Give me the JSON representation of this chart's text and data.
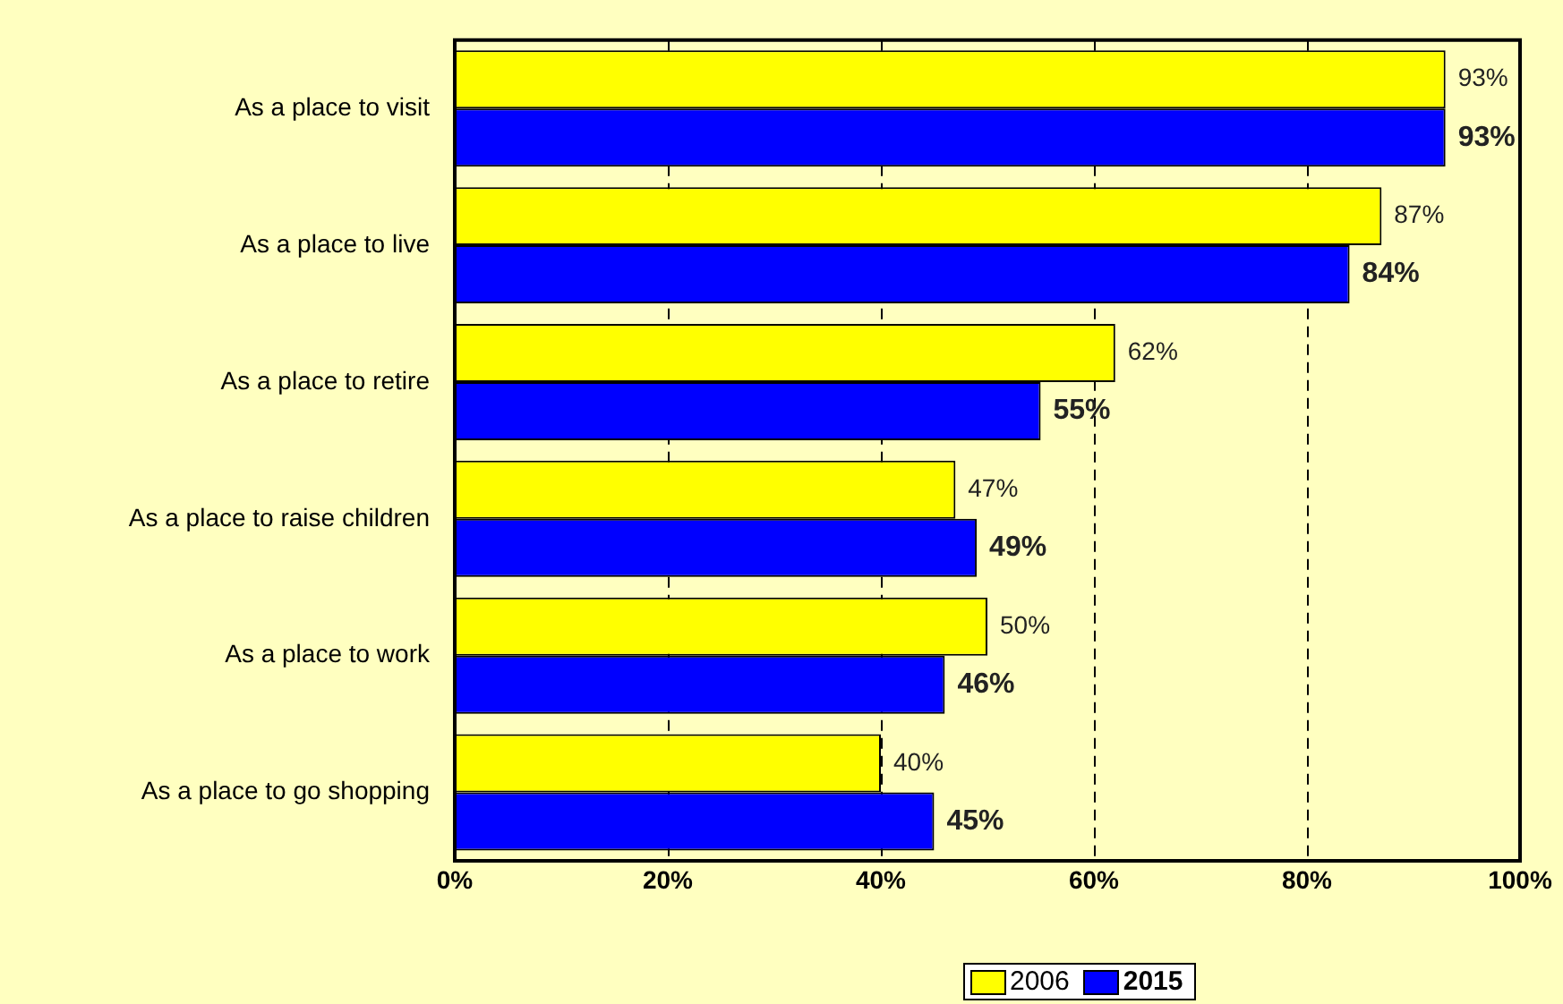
{
  "chart_data": {
    "type": "bar",
    "orientation": "horizontal",
    "categories": [
      "As a place to visit",
      "As a place to live",
      "As a place to retire",
      "As a place to raise children",
      "As a place to work",
      "As a place to go shopping"
    ],
    "series": [
      {
        "name": "2006",
        "color": "#ffff00",
        "values": [
          93,
          87,
          62,
          47,
          50,
          40
        ],
        "value_labels": [
          "93%",
          "87%",
          "62%",
          "47%",
          "50%",
          "40%"
        ]
      },
      {
        "name": "2015",
        "color": "#0000ff",
        "values": [
          93,
          84,
          55,
          49,
          46,
          45
        ],
        "value_labels": [
          "93%",
          "84%",
          "55%",
          "49%",
          "46%",
          "45%"
        ]
      }
    ],
    "xlim": [
      0,
      100
    ],
    "xticks": [
      {
        "value": 0,
        "label": "0%"
      },
      {
        "value": 20,
        "label": "20%"
      },
      {
        "value": 40,
        "label": "40%"
      },
      {
        "value": 60,
        "label": "60%"
      },
      {
        "value": 80,
        "label": "80%"
      },
      {
        "value": 100,
        "label": "100%"
      }
    ],
    "grid": "x",
    "line_style": "dashed",
    "legend": "bottom"
  }
}
